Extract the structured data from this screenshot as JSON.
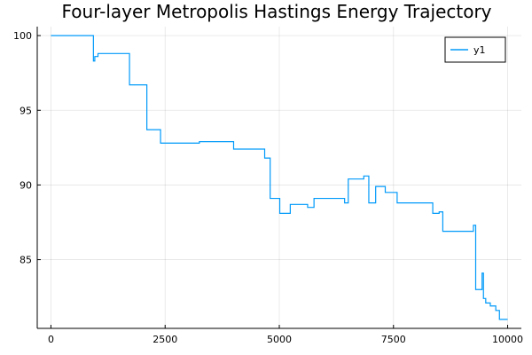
{
  "chart_data": {
    "type": "line",
    "title": "Four-layer Metropolis Hastings Energy Trajectory",
    "xlabel": "",
    "ylabel": "",
    "xlim": [
      -300,
      10300
    ],
    "ylim": [
      80.4,
      100.6
    ],
    "xticks": [
      0,
      2500,
      5000,
      7500,
      10000
    ],
    "xtick_labels": [
      "0",
      "2500",
      "5000",
      "7500",
      "10000"
    ],
    "yticks": [
      85,
      90,
      95,
      100
    ],
    "ytick_labels": [
      "85",
      "90",
      "95",
      "100"
    ],
    "grid": true,
    "legend_position": "top-right",
    "step": "post",
    "series": [
      {
        "name": "y1",
        "color": "#009AFA",
        "x": [
          0,
          930,
          960,
          1030,
          1720,
          2100,
          2400,
          3230,
          3250,
          3950,
          4000,
          4680,
          4800,
          5010,
          5240,
          5620,
          5760,
          6430,
          6510,
          6850,
          6960,
          7110,
          7320,
          7580,
          8360,
          8500,
          8580,
          8690,
          9200,
          9250,
          9300,
          9440,
          9470,
          9520,
          9620,
          9740,
          9820,
          9900,
          10000
        ],
        "values": [
          100.0,
          98.3,
          98.6,
          98.8,
          96.7,
          93.7,
          92.8,
          92.8,
          92.9,
          92.9,
          92.4,
          91.8,
          89.1,
          88.1,
          88.7,
          88.5,
          89.1,
          88.8,
          90.4,
          90.6,
          88.8,
          89.9,
          89.5,
          88.8,
          88.1,
          88.2,
          86.9,
          86.9,
          86.9,
          87.3,
          83.0,
          84.1,
          82.4,
          82.1,
          81.9,
          81.6,
          81.0,
          81.0,
          81.0
        ]
      }
    ]
  }
}
